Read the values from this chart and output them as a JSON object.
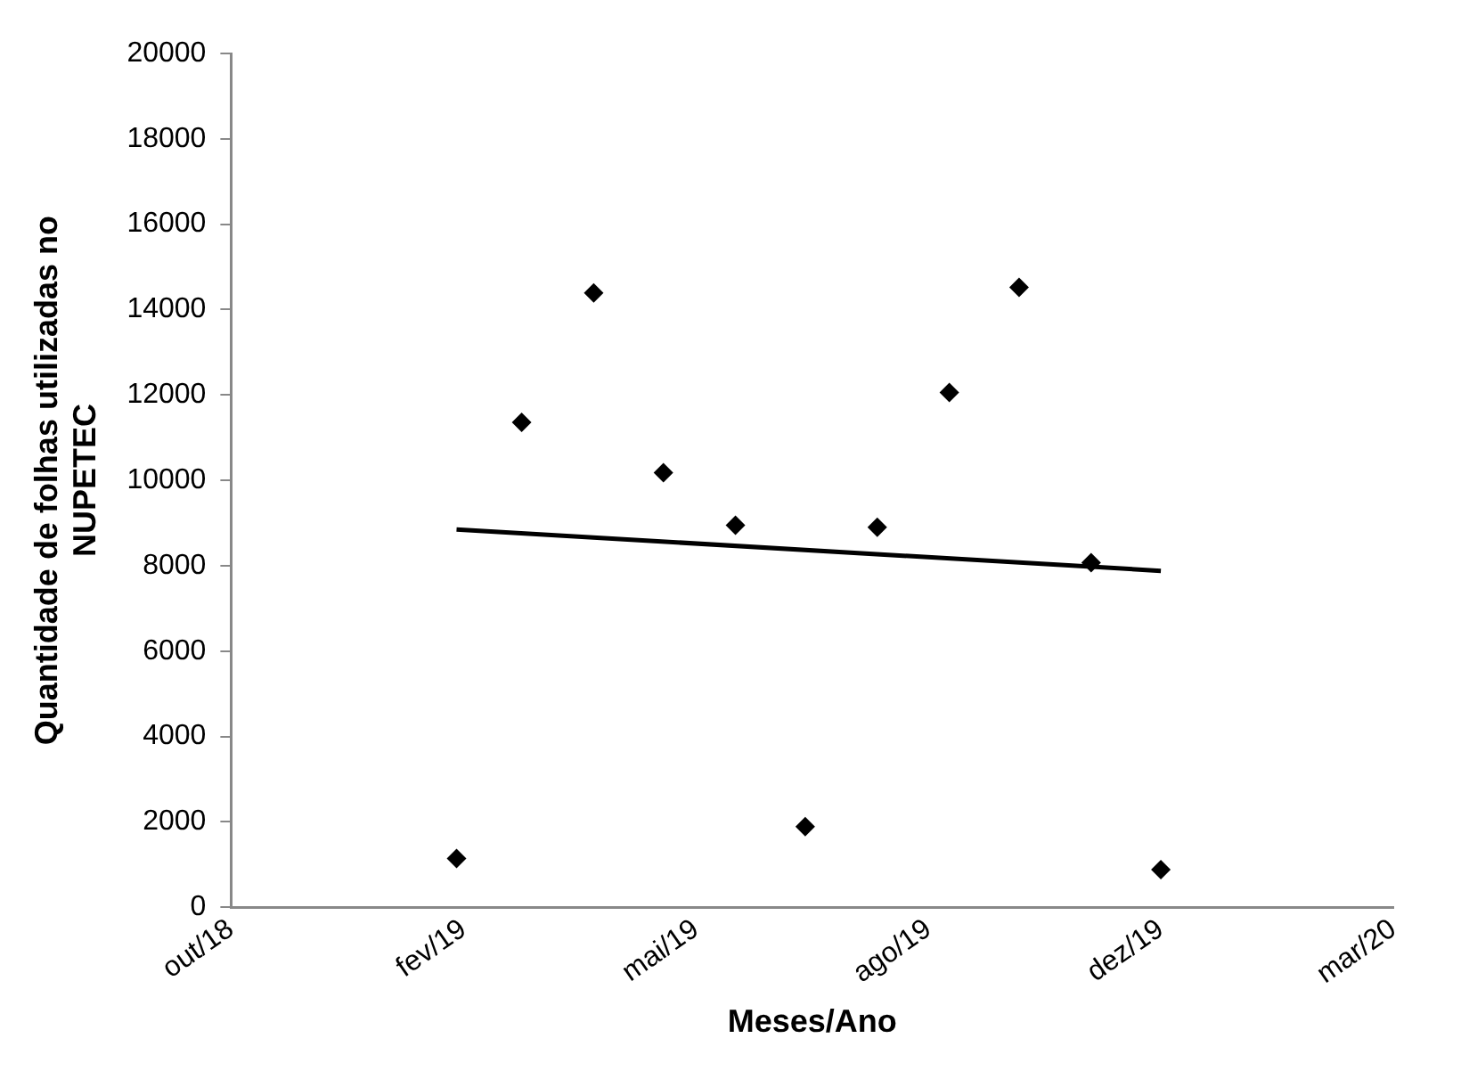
{
  "chart_data": {
    "type": "scatter",
    "xlabel": "Meses/Ano",
    "ylabel": "Quantidade de folhas utilizadas no\nNUPETEC",
    "x": [
      "2019-02-01",
      "2019-03-01",
      "2019-04-01",
      "2019-05-01",
      "2019-06-01",
      "2019-07-01",
      "2019-08-01",
      "2019-09-01",
      "2019-10-01",
      "2019-11-01",
      "2019-12-01"
    ],
    "series": [
      {
        "color": "#000000",
        "marker": "diamond",
        "values": [
          1140,
          11360,
          14390,
          10180,
          8950,
          1890,
          8900,
          12060,
          14520,
          8070,
          880
        ]
      },
      {
        "type": "line",
        "color": "#000000",
        "marker": "none",
        "x": [
          "2019-02-01",
          "2019-12-01"
        ],
        "values": [
          8850,
          7880
        ]
      }
    ],
    "xlim": [
      "2018-10-27",
      "2020-03-10"
    ],
    "xticks": [
      {
        "value": "2018-10-27",
        "label": "out/18"
      },
      {
        "value": "2019-02-04",
        "label": "fev/19"
      },
      {
        "value": "2019-05-15",
        "label": "mai/19"
      },
      {
        "value": "2019-08-23",
        "label": "ago/19"
      },
      {
        "value": "2019-12-01",
        "label": "dez/19"
      },
      {
        "value": "2020-03-10",
        "label": "mar/20"
      }
    ],
    "ylim": [
      0,
      20000
    ],
    "yticks": [
      0,
      2000,
      4000,
      6000,
      8000,
      10000,
      12000,
      14000,
      16000,
      18000,
      20000
    ],
    "grid": false,
    "legend": false
  }
}
